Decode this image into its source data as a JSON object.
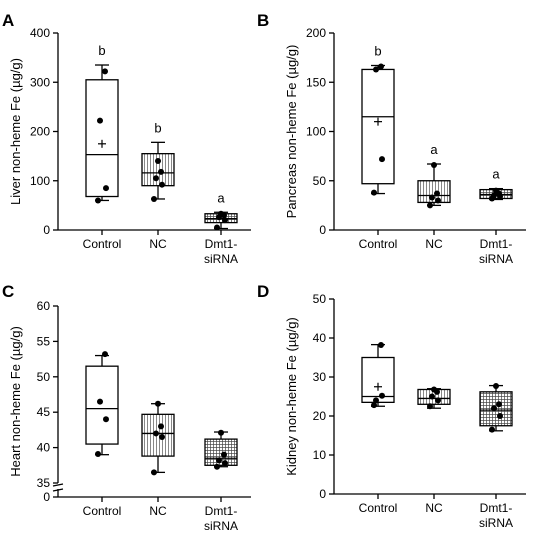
{
  "chart_data": [
    {
      "type": "box",
      "panel_label": "A",
      "ylabel": "Liver non-heme Fe (µg/g)",
      "ylim": [
        0,
        400
      ],
      "yticks": [
        0,
        100,
        200,
        300,
        400
      ],
      "categories": [
        "Control",
        "NC",
        "Dmt1-\nsiRNA"
      ],
      "fill_patterns": [
        "none",
        "vertical-lines",
        "crosshatch"
      ],
      "groups": [
        {
          "min": 60,
          "q1": 68,
          "median": 153,
          "q3": 305,
          "max": 335,
          "mean": 175,
          "points": [
            60,
            85,
            222,
            322
          ],
          "letter": "b"
        },
        {
          "min": 63,
          "q1": 90,
          "median": 116,
          "q3": 155,
          "max": 178,
          "mean": null,
          "points": [
            63,
            92,
            105,
            118,
            140
          ],
          "letter": "b"
        },
        {
          "min": 3,
          "q1": 15,
          "median": 23,
          "q3": 33,
          "max": 36,
          "mean": null,
          "points": [
            5,
            20,
            26,
            30,
            33
          ],
          "letter": "a"
        }
      ]
    },
    {
      "type": "box",
      "panel_label": "B",
      "ylabel": "Pancreas non-heme Fe (µg/g)",
      "ylim": [
        0,
        200
      ],
      "yticks": [
        0,
        50,
        100,
        150,
        200
      ],
      "categories": [
        "Control",
        "NC",
        "Dmt1-\nsiRNA"
      ],
      "fill_patterns": [
        "none",
        "vertical-lines",
        "crosshatch"
      ],
      "groups": [
        {
          "min": 37,
          "q1": 47,
          "median": 115,
          "q3": 163,
          "max": 167,
          "mean": 110,
          "points": [
            38,
            72,
            163,
            166
          ],
          "letter": "b"
        },
        {
          "min": 25,
          "q1": 28,
          "median": 35,
          "q3": 50,
          "max": 67,
          "mean": null,
          "points": [
            25,
            30,
            33,
            37,
            66
          ],
          "letter": "a"
        },
        {
          "min": 31,
          "q1": 32,
          "median": 36,
          "q3": 41,
          "max": 42,
          "mean": null,
          "points": [
            32,
            34,
            35,
            37,
            40
          ],
          "letter": "a"
        }
      ]
    },
    {
      "type": "box",
      "panel_label": "C",
      "ylabel": "Heart non-heme Fe (µg/g)",
      "ylim": [
        0,
        60
      ],
      "axis_break": [
        0,
        35
      ],
      "yticks": [
        0,
        35,
        40,
        45,
        50,
        55,
        60
      ],
      "categories": [
        "Control",
        "NC",
        "Dmt1-\nsiRNA"
      ],
      "fill_patterns": [
        "none",
        "vertical-lines",
        "crosshatch"
      ],
      "groups": [
        {
          "min": 39,
          "q1": 40.5,
          "median": 45.5,
          "q3": 51.5,
          "max": 53,
          "mean": null,
          "points": [
            39.1,
            44,
            46.5,
            53.2
          ],
          "letter": ""
        },
        {
          "min": 36.5,
          "q1": 38.8,
          "median": 42,
          "q3": 44.7,
          "max": 46.2,
          "mean": null,
          "points": [
            36.5,
            41.5,
            42,
            43,
            46.2
          ],
          "letter": ""
        },
        {
          "min": 37.3,
          "q1": 37.5,
          "median": 38.5,
          "q3": 41.2,
          "max": 42.2,
          "mean": null,
          "points": [
            37.3,
            37.8,
            38.2,
            39,
            42.1
          ],
          "letter": ""
        }
      ]
    },
    {
      "type": "box",
      "panel_label": "D",
      "ylabel": "Kidney non-heme Fe (µg/g)",
      "ylim": [
        0,
        50
      ],
      "yticks": [
        0,
        10,
        20,
        30,
        40,
        50
      ],
      "categories": [
        "Control",
        "NC",
        "Dmt1-\nsiRNA"
      ],
      "fill_patterns": [
        "none",
        "vertical-lines",
        "crosshatch"
      ],
      "groups": [
        {
          "min": 22.5,
          "q1": 23.5,
          "median": 25,
          "q3": 35,
          "max": 38.3,
          "mean": 27.5,
          "points": [
            22.8,
            25.2,
            24,
            38.2
          ],
          "letter": ""
        },
        {
          "min": 22,
          "q1": 23,
          "median": 24.5,
          "q3": 26.8,
          "max": 27,
          "mean": null,
          "points": [
            22.5,
            24,
            25,
            26.2,
            26.8
          ],
          "letter": ""
        },
        {
          "min": 16.2,
          "q1": 17.5,
          "median": 21.5,
          "q3": 26.2,
          "max": 27.8,
          "mean": null,
          "points": [
            16.5,
            20,
            22,
            23,
            27.7
          ],
          "letter": ""
        }
      ]
    }
  ]
}
